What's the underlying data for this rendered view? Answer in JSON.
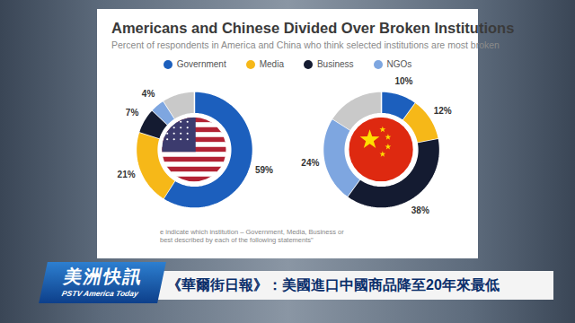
{
  "title": "Americans and Chinese Divided Over Broken Institutions",
  "subtitle": "Percent of respondents in America and China who think selected institutions are most broken",
  "note": [
    "e indicate which institution – Government, Media, Business or",
    "best described by each of the following statements\""
  ],
  "banner": {
    "logo": "美洲快訊",
    "logo_sub": "PSTV America Today",
    "headline": "《華爾街日報》：美國進口中國商品降至20年來最低"
  },
  "chart_data": [
    {
      "type": "donut",
      "legend": "top",
      "data_labels": true,
      "categories": [
        "Government",
        "Media",
        "Business",
        "NGOs",
        null
      ],
      "values": [
        59,
        21,
        7,
        4,
        9
      ],
      "value_labels": [
        "59%",
        "21%",
        "7%",
        "4%",
        null
      ],
      "colors": [
        "#1c5fbd",
        "#f6b818",
        "#141b31",
        "#7ea6e0",
        "#c9c9c9"
      ]
    },
    {
      "type": "donut",
      "legend": "top",
      "data_labels": true,
      "categories": [
        "Government",
        "Media",
        "Business",
        "NGOs",
        null
      ],
      "values": [
        10,
        12,
        38,
        24,
        16
      ],
      "value_labels": [
        "10%",
        "12%",
        "38%",
        "24%",
        null
      ],
      "colors": [
        "#1c5fbd",
        "#f6b818",
        "#141b31",
        "#7ea6e0",
        "#c9c9c9"
      ]
    }
  ]
}
